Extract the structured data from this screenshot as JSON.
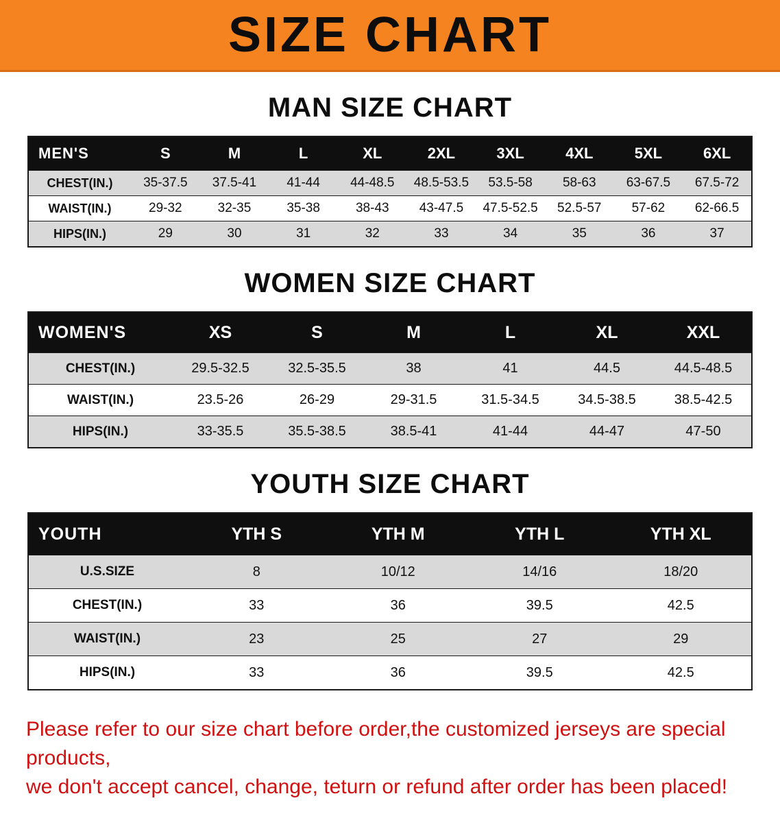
{
  "banner": {
    "title": "SIZE CHART"
  },
  "colors": {
    "banner_bg": "#f5831f",
    "header_bar": "#0f0f0f",
    "row_shade": "#d9d9d9",
    "notice_red": "#cf1111"
  },
  "men": {
    "heading": "MAN SIZE CHART",
    "header": [
      "MEN'S",
      "S",
      "M",
      "L",
      "XL",
      "2XL",
      "3XL",
      "4XL",
      "5XL",
      "6XL"
    ],
    "rows": [
      {
        "label": "CHEST(IN.)",
        "values": [
          "35-37.5",
          "37.5-41",
          "41-44",
          "44-48.5",
          "48.5-53.5",
          "53.5-58",
          "58-63",
          "63-67.5",
          "67.5-72"
        ]
      },
      {
        "label": "WAIST(IN.)",
        "values": [
          "29-32",
          "32-35",
          "35-38",
          "38-43",
          "43-47.5",
          "47.5-52.5",
          "52.5-57",
          "57-62",
          "62-66.5"
        ]
      },
      {
        "label": "HIPS(IN.)",
        "values": [
          "29",
          "30",
          "31",
          "32",
          "33",
          "34",
          "35",
          "36",
          "37"
        ]
      }
    ]
  },
  "women": {
    "heading": "WOMEN SIZE CHART",
    "header": [
      "WOMEN'S",
      "XS",
      "S",
      "M",
      "L",
      "XL",
      "XXL"
    ],
    "rows": [
      {
        "label": "CHEST(IN.)",
        "values": [
          "29.5-32.5",
          "32.5-35.5",
          "38",
          "41",
          "44.5",
          "44.5-48.5"
        ]
      },
      {
        "label": "WAIST(IN.)",
        "values": [
          "23.5-26",
          "26-29",
          "29-31.5",
          "31.5-34.5",
          "34.5-38.5",
          "38.5-42.5"
        ]
      },
      {
        "label": "HIPS(IN.)",
        "values": [
          "33-35.5",
          "35.5-38.5",
          "38.5-41",
          "41-44",
          "44-47",
          "47-50"
        ]
      }
    ]
  },
  "youth": {
    "heading": "YOUTH SIZE CHART",
    "header": [
      "YOUTH",
      "YTH S",
      "YTH M",
      "YTH L",
      "YTH XL"
    ],
    "rows": [
      {
        "label": "U.S.SIZE",
        "values": [
          "8",
          "10/12",
          "14/16",
          "18/20"
        ]
      },
      {
        "label": "CHEST(IN.)",
        "values": [
          "33",
          "36",
          "39.5",
          "42.5"
        ]
      },
      {
        "label": "WAIST(IN.)",
        "values": [
          "23",
          "25",
          "27",
          "29"
        ]
      },
      {
        "label": "HIPS(IN.)",
        "values": [
          "33",
          "36",
          "39.5",
          "42.5"
        ]
      }
    ]
  },
  "footer": {
    "line1": "Please refer to our size chart before order,the customized jerseys are special products,",
    "line2": "we don't accept cancel, change, teturn or refund after order has been placed!"
  }
}
